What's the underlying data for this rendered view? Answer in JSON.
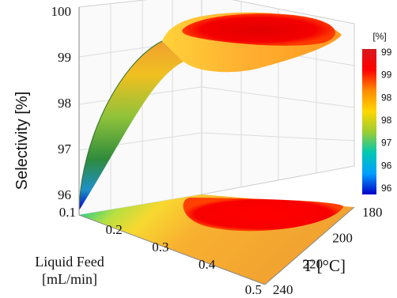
{
  "chart_data": {
    "type": "surface3d",
    "zlabel": "Selectivity [%]",
    "xlabel_line1": "Liquid Feed",
    "xlabel_line2": "[mL/min]",
    "ylabel": "T [°C]",
    "x_ticks": [
      "0.1",
      "0.2",
      "0.3",
      "0.4",
      "0.5"
    ],
    "y_ticks": [
      "180",
      "200",
      "220",
      "240"
    ],
    "z_ticks": [
      "100",
      "99",
      "98",
      "97",
      "96"
    ],
    "x_range": [
      0.1,
      0.5
    ],
    "y_range": [
      180,
      240
    ],
    "z_range": [
      96,
      100
    ],
    "colorbar": {
      "unit": "[%]",
      "labels": [
        "99",
        "99",
        "98",
        "98",
        "97",
        "96",
        "96"
      ],
      "colors": [
        "#d7191c",
        "#ff0000",
        "#ff8c00",
        "#ffd700",
        "#9acd32",
        "#00c8b4",
        "#00a0ff",
        "#0000c8"
      ]
    },
    "surface_samples": [
      {
        "liquid_feed": 0.1,
        "T": 180,
        "selectivity": 99.8
      },
      {
        "liquid_feed": 0.1,
        "T": 240,
        "selectivity": 96.0
      },
      {
        "liquid_feed": 0.3,
        "T": 180,
        "selectivity": 99.9
      },
      {
        "liquid_feed": 0.3,
        "T": 210,
        "selectivity": 99.6
      },
      {
        "liquid_feed": 0.5,
        "T": 180,
        "selectivity": 99.4
      },
      {
        "liquid_feed": 0.5,
        "T": 240,
        "selectivity": 99.1
      }
    ]
  }
}
